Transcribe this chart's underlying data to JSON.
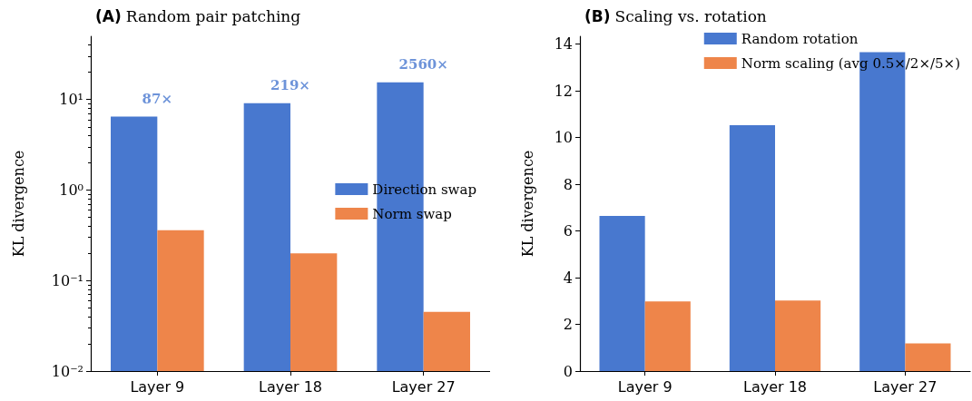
{
  "chart_data": [
    {
      "type": "bar",
      "title": "(A) Random pair patching",
      "ylabel": "KL divergence",
      "categories": [
        "Layer 9",
        "Layer 18",
        "Layer 27"
      ],
      "series": [
        {
          "name": "Direction swap",
          "color": "#4878cf",
          "values": [
            6.5,
            9.1,
            15.5
          ]
        },
        {
          "name": "Norm swap",
          "color": "#ee854a",
          "values": [
            0.36,
            0.2,
            0.045
          ]
        }
      ],
      "log": "y",
      "ylim": [
        0.01,
        50
      ],
      "yticks": [
        {
          "value": 0.01,
          "label": "10⁻²"
        },
        {
          "value": 0.1,
          "label": "10⁻¹"
        },
        {
          "value": 1,
          "label": "10⁰"
        },
        {
          "value": 10,
          "label": "10¹"
        }
      ],
      "annotations": [
        {
          "text": "87×",
          "x": "Layer 9",
          "y": 6.5
        },
        {
          "text": "219×",
          "x": "Layer 18",
          "y": 9.1
        },
        {
          "text": "2560×",
          "x": "Layer 27",
          "y": 15.5
        }
      ],
      "legend": "center right",
      "grid": false
    },
    {
      "type": "bar",
      "title": "(B) Scaling vs. rotation",
      "ylabel": "KL divergence",
      "categories": [
        "Layer 9",
        "Layer 18",
        "Layer 27"
      ],
      "series": [
        {
          "name": "Random rotation",
          "color": "#4878cf",
          "values": [
            6.65,
            10.53,
            13.66
          ]
        },
        {
          "name": "Norm scaling (avg 0.5×/2×/5×)",
          "color": "#ee854a",
          "values": [
            2.98,
            3.02,
            1.19
          ]
        }
      ],
      "ylim": [
        0,
        14.34
      ],
      "yticks": [
        0,
        2,
        4,
        6,
        8,
        10,
        12,
        14
      ],
      "legend": "top right",
      "grid": false
    }
  ]
}
